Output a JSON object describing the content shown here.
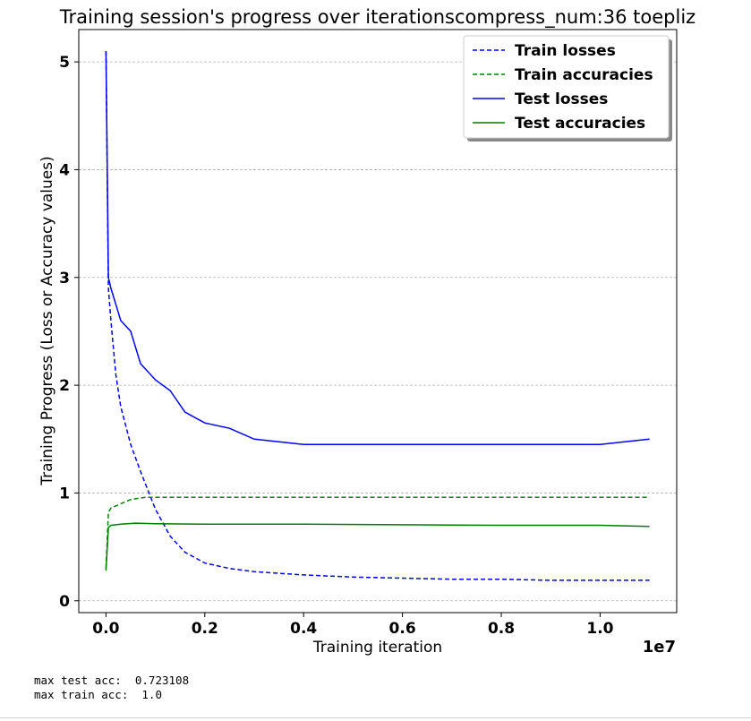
{
  "chart_data": {
    "type": "line",
    "title": "Training session's progress over iterationscompress_num:36 toepliz",
    "xlabel": "Training iteration",
    "ylabel": "Training Progress (Loss or Accuracy values)",
    "x_offset_label": "1e7",
    "xlim": [
      -0.055,
      1.155
    ],
    "ylim": [
      -0.11,
      5.3
    ],
    "xticks": [
      0.0,
      0.2,
      0.4,
      0.6,
      0.8,
      1.0
    ],
    "xtick_labels": [
      "0.0",
      "0.2",
      "0.4",
      "0.6",
      "0.8",
      "1.0"
    ],
    "yticks": [
      0,
      1,
      2,
      3,
      4,
      5
    ],
    "ytick_labels": [
      "0",
      "1",
      "2",
      "3",
      "4",
      "5"
    ],
    "grid": "horizontal dashed",
    "legend_position": "top-right",
    "series": [
      {
        "name": "Train losses",
        "color": "#0000ff",
        "style": "dashed",
        "x": [
          0.0,
          0.005,
          0.01,
          0.02,
          0.03,
          0.05,
          0.07,
          0.1,
          0.13,
          0.16,
          0.2,
          0.25,
          0.3,
          0.4,
          0.5,
          0.6,
          0.7,
          0.8,
          0.9,
          1.0,
          1.1
        ],
        "y": [
          5.1,
          2.9,
          2.6,
          2.1,
          1.8,
          1.45,
          1.2,
          0.85,
          0.6,
          0.45,
          0.35,
          0.3,
          0.27,
          0.24,
          0.22,
          0.21,
          0.2,
          0.2,
          0.19,
          0.19,
          0.19
        ]
      },
      {
        "name": "Train accuracies",
        "color": "#008000",
        "style": "dashed",
        "x": [
          0.0,
          0.005,
          0.01,
          0.03,
          0.05,
          0.08,
          0.1,
          0.2,
          0.4,
          0.6,
          0.8,
          1.0,
          1.1
        ],
        "y": [
          0.3,
          0.82,
          0.86,
          0.9,
          0.94,
          0.96,
          0.96,
          0.96,
          0.96,
          0.96,
          0.96,
          0.96,
          0.96
        ]
      },
      {
        "name": "Test losses",
        "color": "#0000ff",
        "style": "solid",
        "x": [
          0.0,
          0.005,
          0.01,
          0.02,
          0.03,
          0.05,
          0.07,
          0.1,
          0.13,
          0.16,
          0.2,
          0.25,
          0.3,
          0.4,
          0.5,
          0.6,
          0.7,
          0.8,
          0.9,
          1.0,
          1.1
        ],
        "y": [
          5.1,
          3.0,
          2.9,
          2.75,
          2.6,
          2.5,
          2.2,
          2.05,
          1.95,
          1.75,
          1.65,
          1.6,
          1.5,
          1.45,
          1.45,
          1.45,
          1.45,
          1.45,
          1.45,
          1.45,
          1.5
        ]
      },
      {
        "name": "Test accuracies",
        "color": "#008000",
        "style": "solid",
        "x": [
          0.0,
          0.005,
          0.01,
          0.03,
          0.06,
          0.1,
          0.2,
          0.4,
          0.6,
          0.8,
          1.0,
          1.1
        ],
        "y": [
          0.28,
          0.68,
          0.7,
          0.71,
          0.72,
          0.715,
          0.71,
          0.71,
          0.705,
          0.7,
          0.7,
          0.69
        ]
      }
    ]
  },
  "output": {
    "line1": "max test acc:  0.723108",
    "line2": "max train acc:  1.0"
  }
}
